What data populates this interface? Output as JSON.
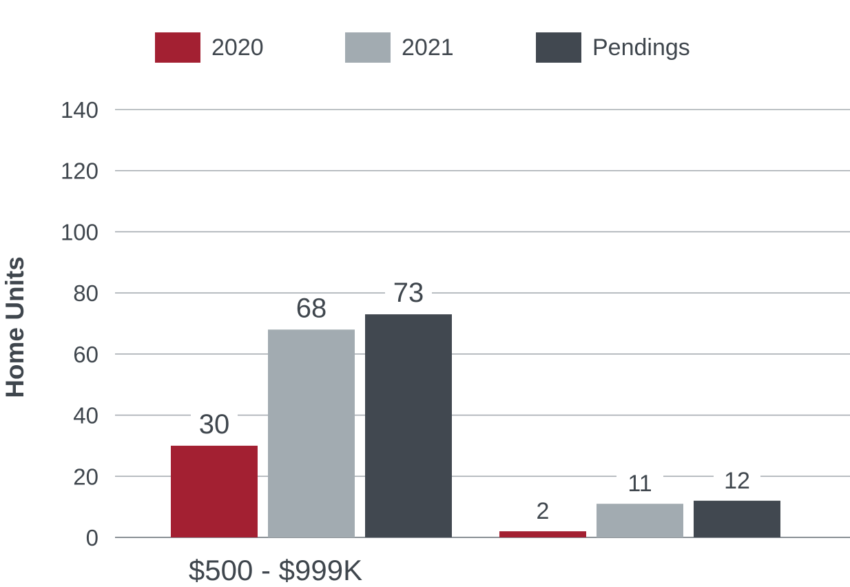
{
  "chart_data": {
    "type": "bar",
    "title": "",
    "xlabel": "",
    "ylabel": "Home Units",
    "ylim": [
      0,
      140
    ],
    "yticks": [
      0,
      20,
      40,
      60,
      80,
      100,
      120,
      140
    ],
    "grid": true,
    "legend_position": "top",
    "categories": [
      "$500 - $999K",
      ""
    ],
    "series": [
      {
        "name": "2020",
        "color": "#a32032",
        "values": [
          30,
          2
        ]
      },
      {
        "name": "2021",
        "color": "#a2abb1",
        "values": [
          68,
          11
        ]
      },
      {
        "name": "Pendings",
        "color": "#414850",
        "values": [
          73,
          12
        ]
      }
    ]
  }
}
